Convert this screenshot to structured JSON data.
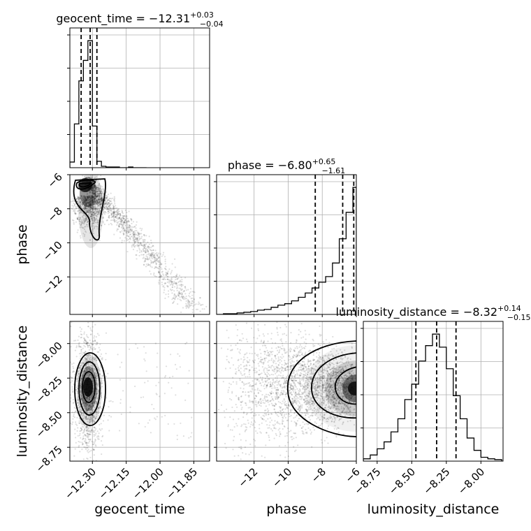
{
  "chart_data": {
    "type": "corner",
    "parameters": [
      "geocent_time",
      "phase",
      "luminosity_distance"
    ],
    "titles": {
      "geocent_time": {
        "name": "geocent_time",
        "median": "−12.31",
        "plus": "+0.03",
        "minus": "−0.04"
      },
      "phase": {
        "name": "phase",
        "median": "−6.80",
        "plus": "+0.65",
        "minus": "−1.61"
      },
      "luminosity_distance": {
        "name": "luminosity_distance",
        "median": "−8.32",
        "plus": "+0.14",
        "minus": "−0.15"
      }
    },
    "axes": {
      "geocent_time": {
        "range": [
          -12.4,
          -11.78
        ],
        "ticks": [
          -12.3,
          -12.15,
          -12.0,
          -11.85
        ],
        "tick_labels": [
          "−12.30",
          "−12.15",
          "−12.00",
          "−11.85"
        ]
      },
      "phase": {
        "range": [
          -14.2,
          -6.0
        ],
        "ticks": [
          -12,
          -10,
          -8,
          -6
        ],
        "tick_labels": [
          "−12",
          "−10",
          "−8",
          "−6"
        ]
      },
      "luminosity_distance": {
        "range": [
          -8.85,
          -7.84
        ],
        "ticks": [
          -8.75,
          -8.5,
          -8.25,
          -8.0
        ],
        "tick_labels": [
          "−8.75",
          "−8.50",
          "−8.25",
          "−8.00"
        ]
      }
    },
    "histograms": {
      "geocent_time": {
        "edges": [
          -12.4,
          -12.38,
          -12.36,
          -12.34,
          -12.32,
          -12.3,
          -12.28,
          -12.26,
          -12.24,
          -12.22,
          -12.2,
          -12.18,
          -12.16,
          -12.14,
          -12.12,
          -12.1,
          -12.08,
          -12.06
        ],
        "counts": [
          8,
          62,
          123,
          152,
          180,
          59,
          9,
          2,
          1,
          1,
          1,
          0,
          0,
          1,
          0,
          0,
          0
        ],
        "quantiles": [
          -12.35,
          -12.31,
          -12.28
        ]
      },
      "phase": {
        "edges": [
          -14.2,
          -13.8,
          -13.4,
          -13.0,
          -12.6,
          -12.2,
          -11.8,
          -11.4,
          -11.0,
          -10.6,
          -10.2,
          -9.8,
          -9.4,
          -9.0,
          -8.6,
          -8.2,
          -7.8,
          -7.4,
          -7.0,
          -6.6,
          -6.2,
          -6.0
        ],
        "counts": [
          0,
          1,
          1,
          2,
          3,
          4,
          6,
          7,
          10,
          13,
          15,
          19,
          24,
          30,
          37,
          45,
          53,
          72,
          106,
          143,
          178
        ],
        "quantiles": [
          -8.41,
          -6.8,
          -6.15
        ]
      },
      "luminosity_distance": {
        "edges": [
          -8.85,
          -8.8,
          -8.75,
          -8.7,
          -8.65,
          -8.6,
          -8.55,
          -8.5,
          -8.45,
          -8.4,
          -8.35,
          -8.3,
          -8.25,
          -8.2,
          -8.15,
          -8.1,
          -8.05,
          -8.0,
          -7.95,
          -7.9,
          -7.85
        ],
        "counts": [
          3,
          8,
          16,
          25,
          38,
          55,
          80,
          100,
          130,
          150,
          165,
          148,
          120,
          85,
          55,
          30,
          14,
          5,
          3,
          2
        ],
        "quantiles": [
          -8.47,
          -8.32,
          -8.18
        ]
      }
    },
    "scatter": {
      "phase_vs_geocent_time": {
        "center": [
          -12.31,
          -6.6
        ]
      },
      "luminosity_distance_vs_geocent_time": {
        "center": [
          -12.32,
          -8.32
        ]
      },
      "luminosity_distance_vs_phase": {
        "center": [
          -6.0,
          -8.32
        ]
      }
    },
    "grid": true
  }
}
